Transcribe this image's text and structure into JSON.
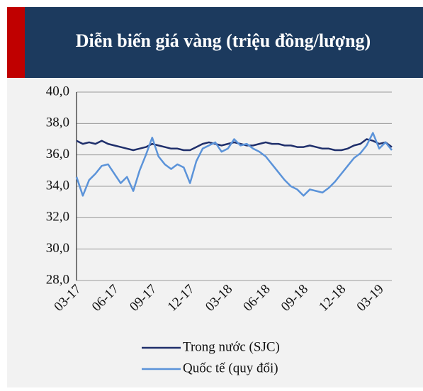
{
  "chart_data": {
    "type": "line",
    "title": "Diễn biến giá vàng (triệu đồng/lượng)",
    "categories": [
      "03-17",
      null,
      null,
      null,
      null,
      null,
      "06-17",
      null,
      null,
      null,
      null,
      null,
      "09-17",
      null,
      null,
      null,
      null,
      null,
      "12-17",
      null,
      null,
      null,
      null,
      null,
      "03-18",
      null,
      null,
      null,
      null,
      null,
      "06-18",
      null,
      null,
      null,
      null,
      null,
      "09-18",
      null,
      null,
      null,
      null,
      null,
      "12-18",
      null,
      null,
      null,
      null,
      null,
      "03-19",
      null,
      null
    ],
    "series": [
      {
        "name": "Trong nước (SJC)",
        "color": "#1f2f6b",
        "values": [
          36.9,
          36.7,
          36.8,
          36.7,
          36.9,
          36.7,
          36.6,
          36.5,
          36.4,
          36.3,
          36.4,
          36.5,
          36.7,
          36.6,
          36.5,
          36.4,
          36.4,
          36.3,
          36.3,
          36.5,
          36.7,
          36.8,
          36.7,
          36.6,
          36.7,
          36.8,
          36.7,
          36.6,
          36.6,
          36.7,
          36.8,
          36.7,
          36.7,
          36.6,
          36.6,
          36.5,
          36.5,
          36.6,
          36.5,
          36.4,
          36.4,
          36.3,
          36.3,
          36.4,
          36.6,
          36.7,
          37.0,
          36.9,
          36.7,
          36.8,
          36.5
        ]
      },
      {
        "name": "Quốc tế (quy đổi)",
        "color": "#5b93d9",
        "values": [
          34.6,
          33.4,
          34.4,
          34.8,
          35.3,
          35.4,
          34.8,
          34.2,
          34.6,
          33.7,
          35.0,
          36.0,
          37.1,
          35.9,
          35.4,
          35.1,
          35.4,
          35.2,
          34.2,
          35.6,
          36.4,
          36.6,
          36.8,
          36.2,
          36.4,
          37.0,
          36.6,
          36.7,
          36.4,
          36.2,
          35.9,
          35.4,
          34.9,
          34.4,
          34.0,
          33.8,
          33.4,
          33.8,
          33.7,
          33.6,
          33.9,
          34.3,
          34.8,
          35.3,
          35.8,
          36.1,
          36.6,
          37.4,
          36.4,
          36.8,
          36.3
        ]
      }
    ],
    "ylim": [
      28,
      40
    ],
    "yticks": [
      {
        "value": 28,
        "label": "28,0"
      },
      {
        "value": 30,
        "label": "30,0"
      },
      {
        "value": 32,
        "label": "32,0"
      },
      {
        "value": 34,
        "label": "34,0"
      },
      {
        "value": 36,
        "label": "36,0"
      },
      {
        "value": 38,
        "label": "38,0"
      },
      {
        "value": 40,
        "label": "40,0"
      }
    ],
    "grid": true
  }
}
